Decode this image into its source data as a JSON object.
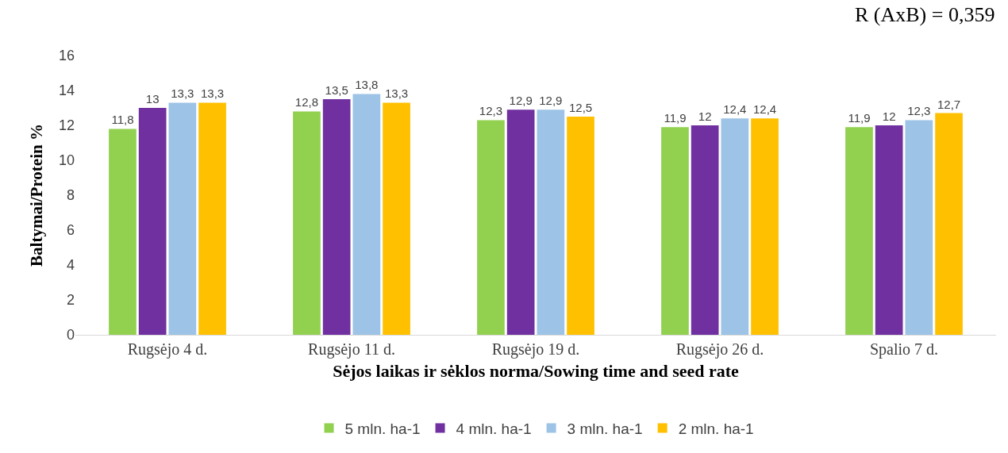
{
  "chart_data": {
    "type": "bar",
    "xlabel": "Sėjos laikas ir sėklos norma/Sowing time and seed rate",
    "ylabel": "Baltymai/Protein %",
    "annotations": [
      "R (AxB) = 0,359"
    ],
    "categories": [
      "Rugsėjo 4 d.",
      "Rugsėjo 11 d.",
      "Rugsėjo 19 d.",
      "Rugsėjo 26 d.",
      "Spalio 7 d."
    ],
    "series": [
      {
        "name": "5 mln. ha-1",
        "color": "#92d050",
        "values": [
          11.8,
          12.8,
          12.3,
          11.9,
          11.9
        ],
        "value_labels": [
          "11,8",
          "12,8",
          "12,3",
          "11,9",
          "11,9"
        ]
      },
      {
        "name": "4 mln. ha-1",
        "color": "#7030a0",
        "values": [
          13,
          13.5,
          12.9,
          12,
          12
        ],
        "value_labels": [
          "13",
          "13,5",
          "12,9",
          "12",
          "12"
        ]
      },
      {
        "name": "3 mln. ha-1",
        "color": "#9dc3e6",
        "values": [
          13.3,
          13.8,
          12.9,
          12.4,
          12.3
        ],
        "value_labels": [
          "13,3",
          "13,8",
          "12,9",
          "12,4",
          "12,3"
        ]
      },
      {
        "name": "2 mln. ha-1",
        "color": "#ffc000",
        "values": [
          13.3,
          13.3,
          12.5,
          12.4,
          12.7
        ],
        "value_labels": [
          "13,3",
          "13,3",
          "12,5",
          "12,4",
          "12,7"
        ]
      }
    ],
    "ylim": [
      0,
      16
    ],
    "yticks": [
      0,
      2,
      4,
      6,
      8,
      10,
      12,
      14,
      16
    ],
    "grid": false,
    "legend": "bottom"
  }
}
